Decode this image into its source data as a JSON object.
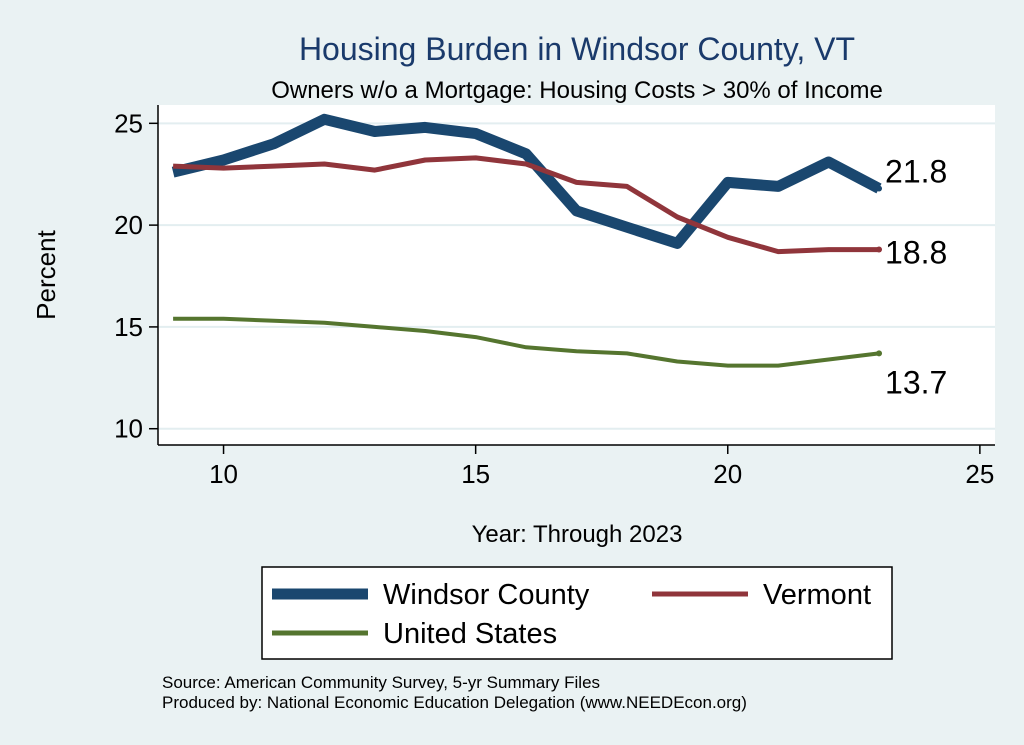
{
  "chart_data": {
    "type": "line",
    "title": "Housing Burden in Windsor County, VT",
    "subtitle": "Owners w/o a Mortgage: Housing Costs > 30% of Income",
    "xlabel": "Year: Through 2023",
    "ylabel": "Percent",
    "xlim": [
      8.7,
      25.3
    ],
    "ylim": [
      9.2,
      25.9
    ],
    "xticks": [
      10,
      15,
      20,
      25
    ],
    "yticks": [
      10,
      15,
      20,
      25
    ],
    "grid": true,
    "legend_position": "bottom",
    "x": [
      9,
      10,
      11,
      12,
      13,
      14,
      15,
      16,
      17,
      18,
      19,
      20,
      21,
      22,
      23
    ],
    "series": [
      {
        "name": "Windsor County",
        "color": "#1a476f",
        "values": [
          22.6,
          23.2,
          24.0,
          25.2,
          24.6,
          24.8,
          24.5,
          23.5,
          20.7,
          19.9,
          19.1,
          22.1,
          21.9,
          23.1,
          21.8
        ],
        "end_label": "21.8"
      },
      {
        "name": "Vermont",
        "color": "#90353b",
        "values": [
          22.9,
          22.8,
          22.9,
          23.0,
          22.7,
          23.2,
          23.3,
          23.0,
          22.1,
          21.9,
          20.4,
          19.4,
          18.7,
          18.8,
          18.8
        ],
        "end_label": "18.8"
      },
      {
        "name": "United States",
        "color": "#55752f",
        "values": [
          15.4,
          15.4,
          15.3,
          15.2,
          15.0,
          14.8,
          14.5,
          14.0,
          13.8,
          13.7,
          13.3,
          13.1,
          13.1,
          13.4,
          13.7
        ],
        "end_label": "13.7"
      }
    ],
    "source_lines": [
      "Source: American Community Survey, 5-yr Summary Files",
      "Produced by: National Economic Education Delegation (www.NEEDEcon.org)"
    ]
  }
}
